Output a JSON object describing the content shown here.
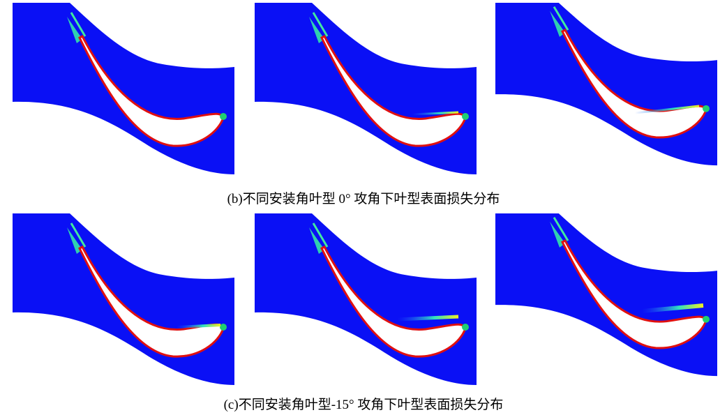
{
  "captions": {
    "b": "(b)不同安装角叶型 0°  攻角下叶型表面损失分布",
    "c": "(c)不同安装角叶型-15°  攻角下叶型表面损失分布"
  }
}
